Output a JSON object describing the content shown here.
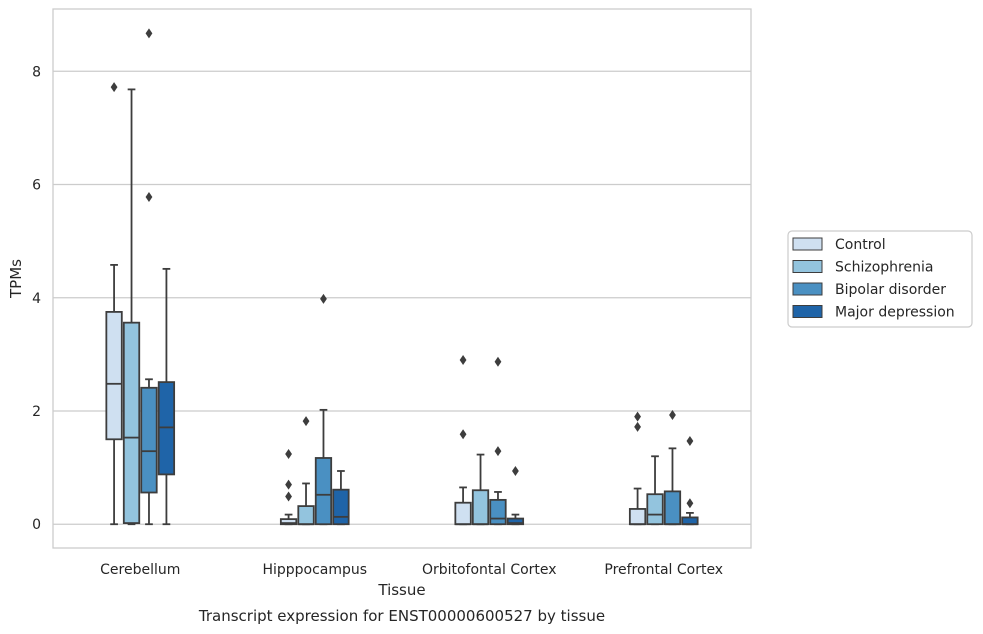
{
  "chart_data": {
    "type": "boxplot",
    "xlabel": "Tissue",
    "ylabel": "TPMs",
    "caption": "Transcript expression for ENST00000600527 by tissue",
    "ylim": [
      -0.42,
      9.1
    ],
    "yticks": [
      0,
      2,
      4,
      6,
      8
    ],
    "grid": "horizontal",
    "legend_position": "right",
    "categories": [
      "Cerebellum",
      "Hipppocampus",
      "Orbitofontal Cortex",
      "Prefrontal Cortex"
    ],
    "series": [
      {
        "name": "Control",
        "color": "#cfe0f1",
        "boxes": [
          {
            "whisker_low": 0,
            "q1": 1.5,
            "median": 2.48,
            "q3": 3.75,
            "whisker_high": 4.58,
            "outliers": [
              7.72
            ]
          },
          {
            "whisker_low": 0,
            "q1": 0.0,
            "median": 0.02,
            "q3": 0.09,
            "whisker_high": 0.17,
            "outliers": [
              0.49,
              0.7,
              1.24
            ]
          },
          {
            "whisker_low": 0,
            "q1": 0.0,
            "median": 0.0,
            "q3": 0.38,
            "whisker_high": 0.65,
            "outliers": [
              1.59,
              2.9
            ]
          },
          {
            "whisker_low": 0,
            "q1": 0.0,
            "median": 0.0,
            "q3": 0.27,
            "whisker_high": 0.63,
            "outliers": [
              1.72,
              1.9
            ]
          }
        ]
      },
      {
        "name": "Schizophrenia",
        "color": "#93c4de",
        "boxes": [
          {
            "whisker_low": 0,
            "q1": 0.02,
            "median": 1.53,
            "q3": 3.56,
            "whisker_high": 7.68,
            "outliers": []
          },
          {
            "whisker_low": 0,
            "q1": 0.0,
            "median": 0.0,
            "q3": 0.32,
            "whisker_high": 0.72,
            "outliers": [
              1.82
            ]
          },
          {
            "whisker_low": 0,
            "q1": 0.0,
            "median": 0.0,
            "q3": 0.6,
            "whisker_high": 1.23,
            "outliers": []
          },
          {
            "whisker_low": 0,
            "q1": 0.0,
            "median": 0.17,
            "q3": 0.53,
            "whisker_high": 1.2,
            "outliers": []
          }
        ]
      },
      {
        "name": "Bipolar disorder",
        "color": "#4a90c2",
        "boxes": [
          {
            "whisker_low": 0,
            "q1": 0.56,
            "median": 1.29,
            "q3": 2.41,
            "whisker_high": 2.56,
            "outliers": [
              5.78,
              8.67
            ]
          },
          {
            "whisker_low": 0,
            "q1": 0.0,
            "median": 0.52,
            "q3": 1.17,
            "whisker_high": 2.02,
            "outliers": [
              3.98
            ]
          },
          {
            "whisker_low": 0,
            "q1": 0.0,
            "median": 0.1,
            "q3": 0.43,
            "whisker_high": 0.57,
            "outliers": [
              1.29,
              2.87
            ]
          },
          {
            "whisker_low": 0,
            "q1": 0.0,
            "median": 0.0,
            "q3": 0.58,
            "whisker_high": 1.34,
            "outliers": [
              1.93
            ]
          }
        ]
      },
      {
        "name": "Major depression",
        "color": "#1f64a8",
        "boxes": [
          {
            "whisker_low": 0,
            "q1": 0.88,
            "median": 1.71,
            "q3": 2.51,
            "whisker_high": 4.51,
            "outliers": []
          },
          {
            "whisker_low": 0,
            "q1": 0.0,
            "median": 0.13,
            "q3": 0.61,
            "whisker_high": 0.94,
            "outliers": []
          },
          {
            "whisker_low": 0,
            "q1": 0.0,
            "median": 0.02,
            "q3": 0.1,
            "whisker_high": 0.17,
            "outliers": [
              0.94
            ]
          },
          {
            "whisker_low": 0,
            "q1": 0.0,
            "median": 0.0,
            "q3": 0.12,
            "whisker_high": 0.2,
            "outliers": [
              0.37,
              1.47
            ]
          }
        ]
      }
    ]
  }
}
